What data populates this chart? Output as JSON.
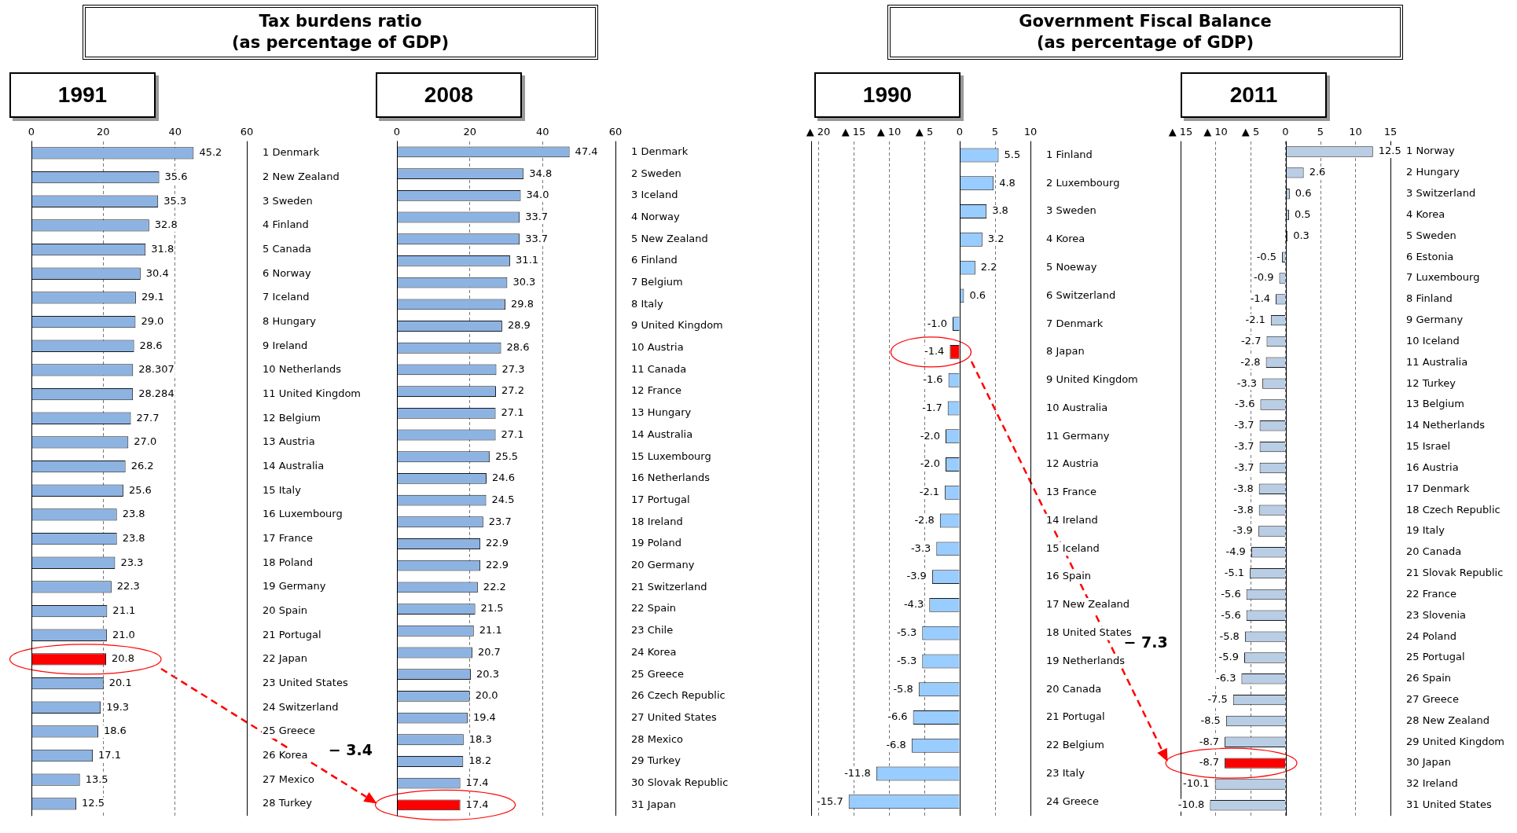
{
  "chart_data": [
    {
      "type": "bar",
      "orientation": "horizontal",
      "title": "Tax burdens ratio\n(as percentage of GDP)",
      "subtitle": "1991",
      "grid": "x",
      "xlim": [
        0,
        60
      ],
      "xticks": [
        0,
        20,
        40,
        60
      ],
      "categories": [
        "1 Denmark",
        "2 New Zealand",
        "3 Sweden",
        "4 Finland",
        "5 Canada",
        "6 Norway",
        "7 Iceland",
        "8 Hungary",
        "9 Ireland",
        "10 Netherlands",
        "11 United Kingdom",
        "12 Belgium",
        "13 Austria",
        "14 Australia",
        "15 Italy",
        "16 Luxembourg",
        "17 France",
        "18 Poland",
        "19 Germany",
        "20 Spain",
        "21 Portugal",
        "22 Japan",
        "23 United States",
        "24 Switzerland",
        "25 Greece",
        "26 Korea",
        "27 Mexico",
        "28 Turkey"
      ],
      "values": [
        45.2,
        35.6,
        35.3,
        32.8,
        31.8,
        30.4,
        29.1,
        29.0,
        28.6,
        28.307,
        28.284,
        27.7,
        27.0,
        26.2,
        25.6,
        23.8,
        23.8,
        23.3,
        22.3,
        21.1,
        21.0,
        20.8,
        20.1,
        19.3,
        18.6,
        17.1,
        13.5,
        12.5
      ],
      "value_labels": [
        "45.2",
        "35.6",
        "35.3",
        "32.8",
        "31.8",
        "30.4",
        "29.1",
        "29.0",
        "28.6",
        "28.307",
        "28.284",
        "27.7",
        "27.0",
        "26.2",
        "25.6",
        "23.8",
        "23.8",
        "23.3",
        "22.3",
        "21.1",
        "21.0",
        "20.8",
        "20.1",
        "19.3",
        "18.6",
        "17.1",
        "13.5",
        "12.5"
      ],
      "colors": [
        "#8db3e2",
        "#8db3e2",
        "#8db3e2",
        "#8db3e2",
        "#8db3e2",
        "#8db3e2",
        "#8db3e2",
        "#8db3e2",
        "#8db3e2",
        "#8db3e2",
        "#8db3e2",
        "#8db3e2",
        "#8db3e2",
        "#8db3e2",
        "#8db3e2",
        "#8db3e2",
        "#8db3e2",
        "#8db3e2",
        "#8db3e2",
        "#8db3e2",
        "#8db3e2",
        "#ff0000",
        "#8db3e2",
        "#8db3e2",
        "#8db3e2",
        "#8db3e2",
        "#8db3e2",
        "#8db3e2"
      ]
    },
    {
      "type": "bar",
      "orientation": "horizontal",
      "subtitle": "2008",
      "grid": "x",
      "xlim": [
        0,
        60
      ],
      "xticks": [
        0,
        20,
        40,
        60
      ],
      "annotations": [
        "− 3.4"
      ],
      "categories": [
        "1 Denmark",
        "2 Sweden",
        "3 Iceland",
        "4 Norway",
        "5 New Zealand",
        "6 Finland",
        "7 Belgium",
        "8 Italy",
        "9 United Kingdom",
        "10 Austria",
        "11 Canada",
        "12 France",
        "13 Hungary",
        "14 Australia",
        "15 Luxembourg",
        "16 Netherlands",
        "17 Portugal",
        "18 Ireland",
        "19 Poland",
        "20 Germany",
        "21 Switzerland",
        "22 Spain",
        "23 Chile",
        "24 Korea",
        "25 Greece",
        "26 Czech Republic",
        "27 United States",
        "28 Mexico",
        "29 Turkey",
        "30 Slovak Republic",
        "31 Japan"
      ],
      "values": [
        47.4,
        34.8,
        34.0,
        33.7,
        33.7,
        31.1,
        30.3,
        29.8,
        28.9,
        28.6,
        27.3,
        27.2,
        27.1,
        27.1,
        25.5,
        24.6,
        24.5,
        23.7,
        22.9,
        22.9,
        22.2,
        21.5,
        21.1,
        20.7,
        20.3,
        20.0,
        19.4,
        18.3,
        18.2,
        17.4,
        17.4
      ],
      "value_labels": [
        "47.4",
        "34.8",
        "34.0",
        "33.7",
        "33.7",
        "31.1",
        "30.3",
        "29.8",
        "28.9",
        "28.6",
        "27.3",
        "27.2",
        "27.1",
        "27.1",
        "25.5",
        "24.6",
        "24.5",
        "23.7",
        "22.9",
        "22.9",
        "22.2",
        "21.5",
        "21.1",
        "20.7",
        "20.3",
        "20.0",
        "19.4",
        "18.3",
        "18.2",
        "17.4",
        "17.4"
      ],
      "colors": [
        "#8db3e2",
        "#8db3e2",
        "#8db3e2",
        "#8db3e2",
        "#8db3e2",
        "#8db3e2",
        "#8db3e2",
        "#8db3e2",
        "#8db3e2",
        "#8db3e2",
        "#8db3e2",
        "#8db3e2",
        "#8db3e2",
        "#8db3e2",
        "#8db3e2",
        "#8db3e2",
        "#8db3e2",
        "#8db3e2",
        "#8db3e2",
        "#8db3e2",
        "#8db3e2",
        "#8db3e2",
        "#8db3e2",
        "#8db3e2",
        "#8db3e2",
        "#8db3e2",
        "#8db3e2",
        "#8db3e2",
        "#8db3e2",
        "#8db3e2",
        "#ff0000"
      ]
    },
    {
      "type": "bar",
      "orientation": "horizontal",
      "title": "Government Fiscal Balance\n(as percentage of GDP)",
      "subtitle": "1990",
      "grid": "x",
      "xlim": [
        -21,
        10
      ],
      "xticks": [
        {
          "value": -20,
          "label": "▲ 20"
        },
        {
          "value": -15,
          "label": "▲ 15"
        },
        {
          "value": -10,
          "label": "▲ 10"
        },
        {
          "value": -5,
          "label": "▲ 5"
        },
        0,
        5,
        10
      ],
      "categories": [
        "1 Finland",
        "2 Luxembourg",
        "3 Sweden",
        "4 Korea",
        "5 Noeway",
        "6 Switzerland",
        "7 Denmark",
        "8 Japan",
        "9 United Kingdom",
        "10 Australia",
        "11 Germany",
        "12 Austria",
        "13 France",
        "14 Ireland",
        "15 Iceland",
        "16 Spain",
        "17 New Zealand",
        "18 United States",
        "19 Netherlands",
        "20 Canada",
        "21 Portugal",
        "22 Belgium",
        "23 Italy",
        "24 Greece"
      ],
      "values": [
        5.5,
        4.8,
        3.8,
        3.2,
        2.2,
        0.6,
        -1.0,
        -1.4,
        -1.6,
        -1.7,
        -2.0,
        -2.0,
        -2.1,
        -2.8,
        -3.3,
        -3.9,
        -4.3,
        -5.3,
        -5.3,
        -5.8,
        -6.6,
        -6.8,
        -11.8,
        -15.7
      ],
      "value_labels": [
        "5.5",
        "4.8",
        "3.8",
        "3.2",
        "2.2",
        "0.6",
        "-1.0",
        "-1.4",
        "-1.6",
        "-1.7",
        "-2.0",
        "-2.0",
        "-2.1",
        "-2.8",
        "-3.3",
        "-3.9",
        "-4.3",
        "-5.3",
        "-5.3",
        "-5.8",
        "-6.6",
        "-6.8",
        "-11.8",
        "-15.7"
      ],
      "colors": [
        "#99ccff",
        "#99ccff",
        "#99ccff",
        "#99ccff",
        "#99ccff",
        "#99ccff",
        "#99ccff",
        "#ff0000",
        "#99ccff",
        "#99ccff",
        "#99ccff",
        "#99ccff",
        "#99ccff",
        "#99ccff",
        "#99ccff",
        "#99ccff",
        "#99ccff",
        "#99ccff",
        "#99ccff",
        "#99ccff",
        "#99ccff",
        "#99ccff",
        "#99ccff",
        "#99ccff"
      ]
    },
    {
      "type": "bar",
      "orientation": "horizontal",
      "subtitle": "2011",
      "grid": "x",
      "xlim": [
        -15,
        15
      ],
      "annotations": [
        "− 7.3"
      ],
      "xticks": [
        {
          "value": -15,
          "label": "▲ 15"
        },
        {
          "value": -10,
          "label": "▲ 10"
        },
        {
          "value": -5,
          "label": "▲ 5"
        },
        0,
        5,
        10,
        15
      ],
      "categories": [
        "1 Norway",
        "2 Hungary",
        "3 Switzerland",
        "4 Korea",
        "5 Sweden",
        "6 Estonia",
        "7 Luxembourg",
        "8 Finland",
        "9 Germany",
        "10 Iceland",
        "11 Australia",
        "12 Turkey",
        "13 Belgium",
        "14 Netherlands",
        "15 Israel",
        "16 Austria",
        "17 Denmark",
        "18 Czech Republic",
        "19 Italy",
        "20 Canada",
        "21 Slovak Republic",
        "22 France",
        "23 Slovenia",
        "24 Poland",
        "25 Portugal",
        "26 Spain",
        "27 Greece",
        "28 New Zealand",
        "29 United Kingdom",
        "30 Japan",
        "32 Ireland",
        "31 United States"
      ],
      "values": [
        12.5,
        2.6,
        0.6,
        0.5,
        0.3,
        -0.5,
        -0.9,
        -1.4,
        -2.1,
        -2.7,
        -2.8,
        -3.3,
        -3.6,
        -3.7,
        -3.7,
        -3.7,
        -3.8,
        -3.8,
        -3.9,
        -4.9,
        -5.1,
        -5.6,
        -5.6,
        -5.8,
        -5.9,
        -6.3,
        -7.5,
        -8.5,
        -8.7,
        -8.7,
        -10.1,
        -10.8
      ],
      "value_labels": [
        "12.5",
        "2.6",
        "0.6",
        "0.5",
        "0.3",
        "-0.5",
        "-0.9",
        "-1.4",
        "-2.1",
        "-2.7",
        "-2.8",
        "-3.3",
        "-3.6",
        "-3.7",
        "-3.7",
        "-3.7",
        "-3.8",
        "-3.8",
        "-3.9",
        "-4.9",
        "-5.1",
        "-5.6",
        "-5.6",
        "-5.8",
        "-5.9",
        "-6.3",
        "-7.5",
        "-8.5",
        "-8.7",
        "-8.7",
        "-10.1",
        "-10.8"
      ],
      "colors": [
        "#b9cde5",
        "#b9cde5",
        "#b9cde5",
        "#b9cde5",
        "#b9cde5",
        "#b9cde5",
        "#b9cde5",
        "#b9cde5",
        "#b9cde5",
        "#b9cde5",
        "#b9cde5",
        "#b9cde5",
        "#b9cde5",
        "#b9cde5",
        "#b9cde5",
        "#b9cde5",
        "#b9cde5",
        "#b9cde5",
        "#b9cde5",
        "#b9cde5",
        "#b9cde5",
        "#b9cde5",
        "#b9cde5",
        "#b9cde5",
        "#b9cde5",
        "#b9cde5",
        "#b9cde5",
        "#b9cde5",
        "#b9cde5",
        "#ff0000",
        "#b9cde5",
        "#b9cde5"
      ]
    }
  ]
}
